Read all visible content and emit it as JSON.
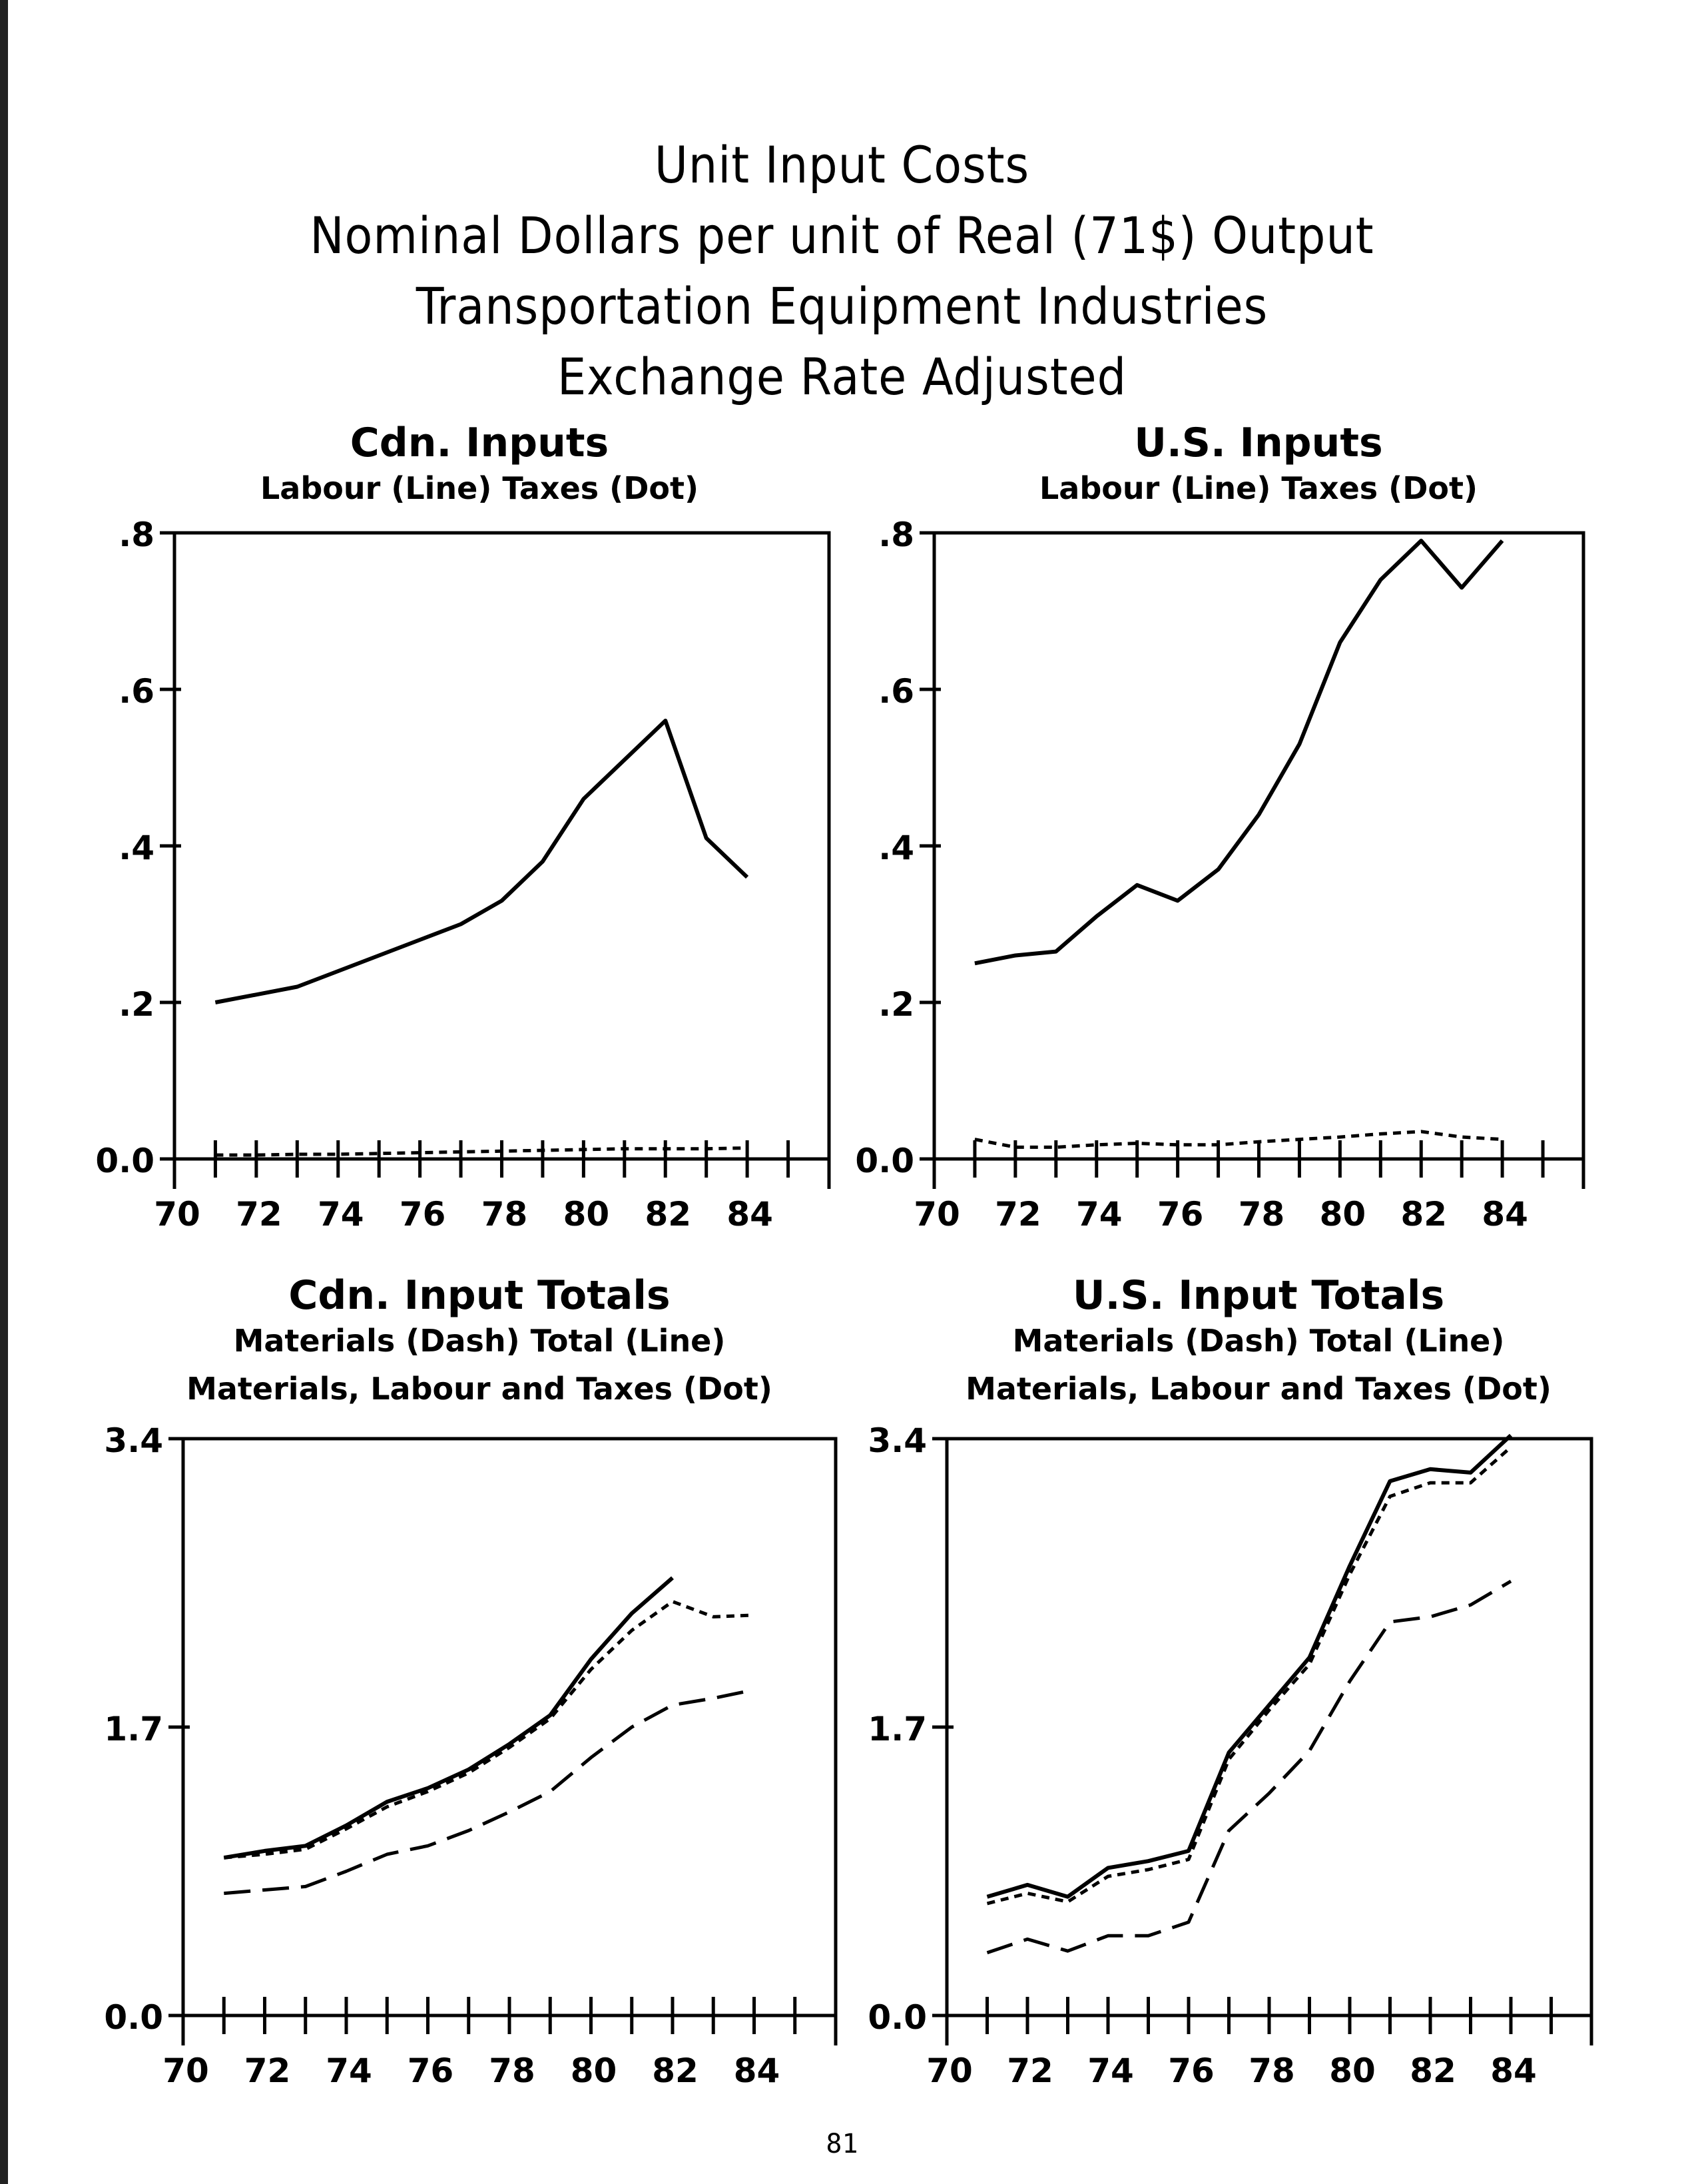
{
  "page": {
    "title_lines": [
      "Unit Input Costs",
      "Nominal Dollars per unit of Real (71$) Output",
      "Transportation Equipment Industries",
      "Exchange Rate Adjusted"
    ],
    "page_number": "81"
  },
  "chart_data": [
    {
      "type": "line",
      "title": "Cdn. Inputs",
      "subtitle": "Labour (Line)  Taxes (Dot)",
      "subtitle2": "",
      "x": [
        71,
        72,
        73,
        74,
        75,
        76,
        77,
        78,
        79,
        80,
        81,
        82,
        83,
        84
      ],
      "xlim": [
        70,
        86
      ],
      "xticks": [
        70,
        72,
        74,
        76,
        78,
        80,
        82,
        84
      ],
      "ylim": [
        0,
        0.8
      ],
      "yticks": [
        0,
        0.2,
        0.4,
        0.6,
        0.8
      ],
      "ytick_labels": [
        "0.0",
        ".2",
        ".4",
        ".6",
        ".8"
      ],
      "series": [
        {
          "values": [
            0.2,
            0.21,
            0.22,
            0.24,
            0.26,
            0.28,
            0.3,
            0.33,
            0.38,
            0.46,
            0.51,
            0.56,
            0.41,
            0.36
          ],
          "style": "solid"
        },
        {
          "values": [
            0.005,
            0.005,
            0.006,
            0.006,
            0.007,
            0.008,
            0.009,
            0.01,
            0.011,
            0.012,
            0.013,
            0.013,
            0.013,
            0.014
          ],
          "style": "dot"
        }
      ]
    },
    {
      "type": "line",
      "title": "U.S. Inputs",
      "subtitle": "Labour (Line)  Taxes (Dot)",
      "subtitle2": "",
      "x": [
        71,
        72,
        73,
        74,
        75,
        76,
        77,
        78,
        79,
        80,
        81,
        82,
        83,
        84
      ],
      "xlim": [
        70,
        86
      ],
      "xticks": [
        70,
        72,
        74,
        76,
        78,
        80,
        82,
        84
      ],
      "ylim": [
        0,
        0.8
      ],
      "yticks": [
        0,
        0.2,
        0.4,
        0.6,
        0.8
      ],
      "ytick_labels": [
        "0.0",
        ".2",
        ".4",
        ".6",
        ".8"
      ],
      "series": [
        {
          "values": [
            0.25,
            0.26,
            0.265,
            0.31,
            0.35,
            0.33,
            0.37,
            0.44,
            0.53,
            0.66,
            0.74,
            0.79,
            0.73,
            0.79
          ],
          "style": "solid"
        },
        {
          "values": [
            0.025,
            0.015,
            0.015,
            0.018,
            0.02,
            0.018,
            0.018,
            0.022,
            0.025,
            0.028,
            0.032,
            0.035,
            0.028,
            0.025
          ],
          "style": "dot"
        }
      ]
    },
    {
      "type": "line",
      "title": "Cdn. Input Totals",
      "subtitle": "Materials (Dash)   Total (Line)",
      "subtitle2": "Materials, Labour and Taxes (Dot)",
      "x": [
        71,
        72,
        73,
        74,
        75,
        76,
        77,
        78,
        79,
        80,
        81,
        82,
        83,
        84
      ],
      "xlim": [
        70,
        86
      ],
      "xticks": [
        70,
        72,
        74,
        76,
        78,
        80,
        82,
        84
      ],
      "ylim": [
        0,
        3.4
      ],
      "yticks": [
        0,
        1.7,
        3.4
      ],
      "ytick_labels": [
        "0.0",
        "1.7",
        "3.4"
      ],
      "series": [
        {
          "values": [
            0.93,
            0.97,
            1.0,
            1.12,
            1.26,
            1.34,
            1.45,
            1.6,
            1.77,
            2.1,
            2.37,
            2.58,
            null,
            null
          ],
          "style": "solid"
        },
        {
          "values": [
            0.93,
            0.95,
            0.98,
            1.1,
            1.23,
            1.32,
            1.43,
            1.58,
            1.75,
            2.04,
            2.27,
            2.44,
            2.35,
            2.36
          ],
          "style": "dot"
        },
        {
          "values": [
            0.72,
            0.74,
            0.76,
            0.85,
            0.95,
            1.0,
            1.09,
            1.2,
            1.32,
            1.52,
            1.7,
            1.83,
            1.87,
            1.92
          ],
          "style": "dash"
        }
      ]
    },
    {
      "type": "line",
      "title": "U.S. Input Totals",
      "subtitle": "Materials (Dash)   Total (Line)",
      "subtitle2": "Materials, Labour and Taxes (Dot)",
      "x": [
        71,
        72,
        73,
        74,
        75,
        76,
        77,
        78,
        79,
        80,
        81,
        82,
        83,
        84
      ],
      "xlim": [
        70,
        86
      ],
      "xticks": [
        70,
        72,
        74,
        76,
        78,
        80,
        82,
        84
      ],
      "ylim": [
        0,
        3.4
      ],
      "yticks": [
        0,
        1.7,
        3.4
      ],
      "ytick_labels": [
        "0.0",
        "1.7",
        "3.4"
      ],
      "series": [
        {
          "values": [
            0.7,
            0.77,
            0.7,
            0.87,
            0.91,
            0.97,
            1.55,
            1.83,
            2.11,
            2.65,
            3.15,
            3.22,
            3.2,
            3.42
          ],
          "style": "solid"
        },
        {
          "values": [
            0.66,
            0.72,
            0.67,
            0.82,
            0.86,
            0.92,
            1.51,
            1.8,
            2.07,
            2.6,
            3.06,
            3.14,
            3.14,
            3.35
          ],
          "style": "dot"
        },
        {
          "values": [
            0.37,
            0.45,
            0.38,
            0.47,
            0.47,
            0.55,
            1.09,
            1.31,
            1.56,
            1.97,
            2.32,
            2.35,
            2.42,
            2.56
          ],
          "style": "dash"
        }
      ]
    }
  ]
}
